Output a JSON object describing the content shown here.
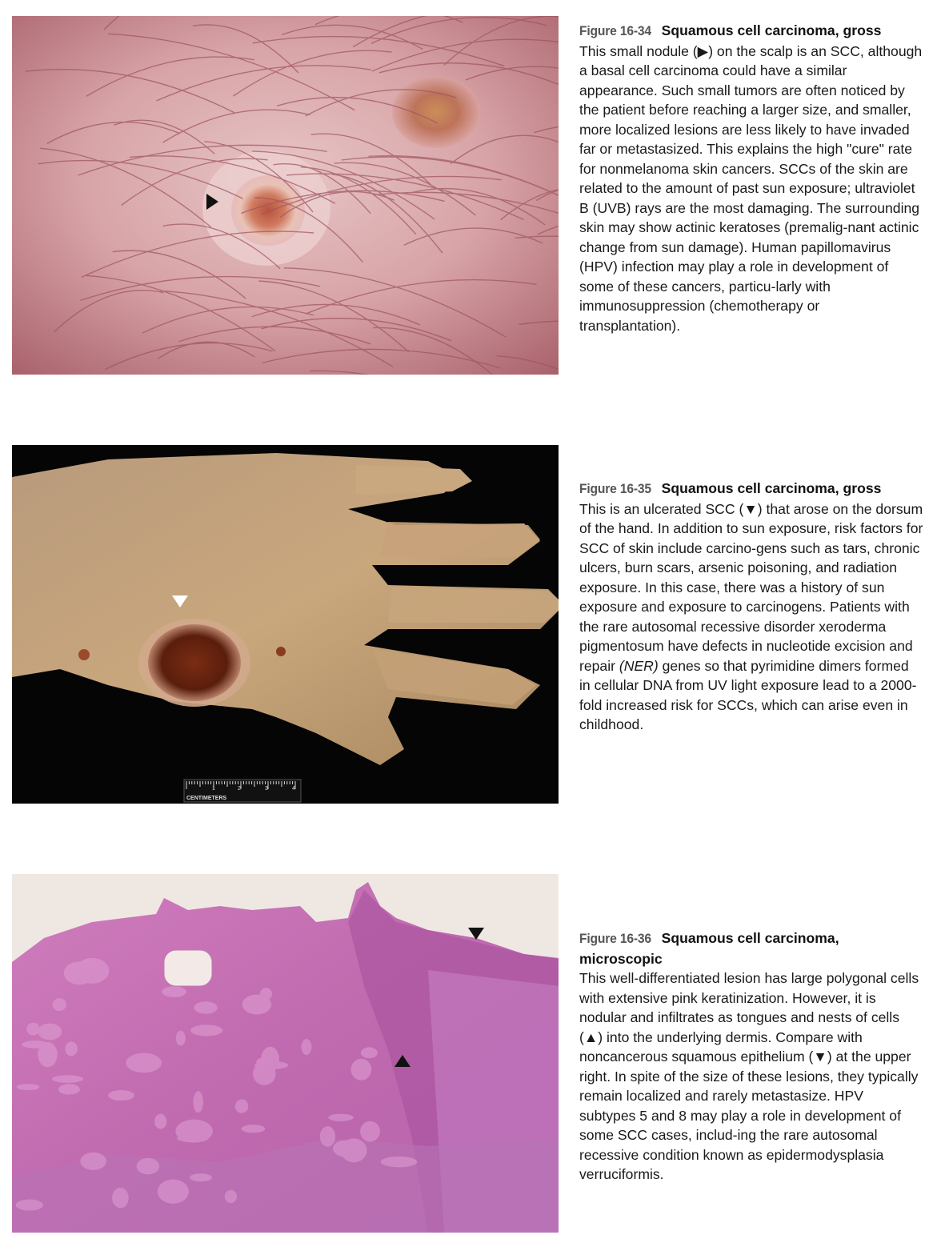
{
  "figures": [
    {
      "number": "Figure 16-34",
      "title": "Squamous cell carcinoma, gross",
      "marker": "▶",
      "text_parts": [
        "This small nodule (",
        "▶",
        ") on the scalp is an SCC, although a basal cell carcinoma could have a similar appearance. Such small tumors are often noticed by the patient before reaching a larger size, and smaller, more localized lesions are less likely to have invaded far or metastasized. This explains the high \"cure\" rate for nonmelanoma skin cancers. SCCs of the skin are related to the amount of past sun exposure; ultraviolet B (UVB) rays are the most damaging. The surrounding skin may show actinic keratoses (premalig-nant actinic change from sun damage). Human papillomavirus (HPV) infection may play a role in development of some of these cancers, particu-larly with immunosuppression (chemotherapy or transplantation)."
      ]
    },
    {
      "number": "Figure 16-35",
      "title": "Squamous cell carcinoma, gross",
      "marker": "▼",
      "ruler_label": "CENTIMETERS",
      "ruler_ticks": [
        "1",
        "2",
        "3",
        "4"
      ],
      "text_before_italic": "This is an ulcerated SCC (▼) that arose on the dorsum of the hand. In addition to sun exposure, risk factors for SCC of skin include carcino-gens such as tars, chronic ulcers, burn scars, arsenic poisoning, and radiation exposure. In this case, there was a history of sun exposure and exposure to carcinogens. Patients with the rare autosomal recessive disorder xeroderma pigmentosum have defects in nucleotide excision and repair ",
      "italic": "(NER)",
      "text_after_italic": " genes so that pyrimidine dimers formed in cellular DNA from UV light exposure lead to a 2000-fold increased risk for SCCs, which can arise even in childhood."
    },
    {
      "number": "Figure 16-36",
      "title": "Squamous cell carcinoma, microscopic",
      "marker_up": "▲",
      "marker_down": "▼",
      "text": "This well-differentiated lesion has large polygonal cells with extensive pink keratinization. However, it is nodular and infiltrates as tongues and nests of cells (▲) into the underlying dermis. Compare with noncancerous squamous epithelium (▼) at the upper right. In spite of the size of these lesions, they typically remain localized and rarely metastasize. HPV subtypes 5 and 8 may play a role in development of some SCC cases, includ-ing the rare autosomal recessive condition known as epidermodysplasia verruciformis."
    }
  ],
  "colors": {
    "scalp_skin": "#d9a0a3",
    "hair": "#b06a73",
    "lesion": "#c4634a",
    "hand_skin": "#c7a37a",
    "ulcer": "#6b2a12",
    "he_pink": "#c56fb0",
    "he_purple": "#8a3f9a",
    "background_dark": "#050505"
  }
}
